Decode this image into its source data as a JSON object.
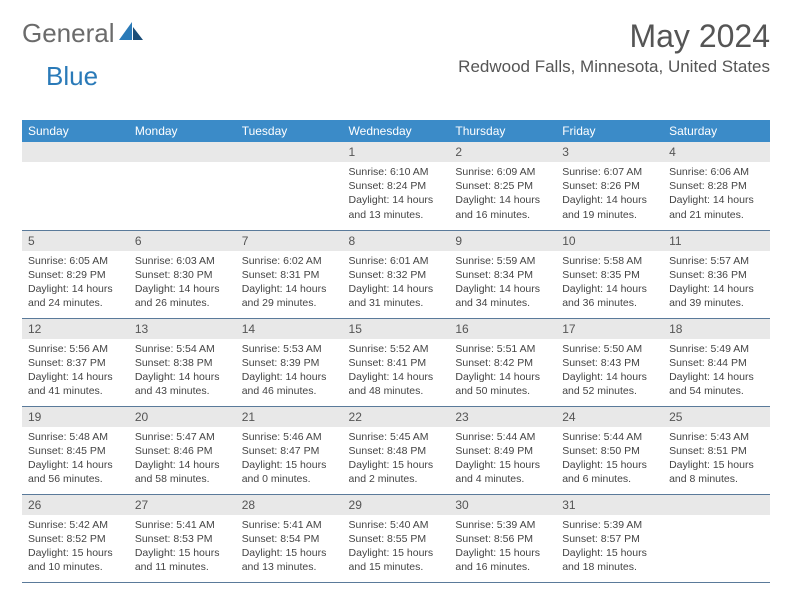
{
  "brand": {
    "general": "General",
    "blue": "Blue"
  },
  "title": "May 2024",
  "location": "Redwood Falls, Minnesota, United States",
  "colors": {
    "header_band": "#3b8bc8",
    "daynum_band": "#e8e8e8",
    "row_border": "#5a7a9a",
    "text": "#444444",
    "logo_gray": "#6b6b6b",
    "logo_blue": "#2a7ab8"
  },
  "day_headers": [
    "Sunday",
    "Monday",
    "Tuesday",
    "Wednesday",
    "Thursday",
    "Friday",
    "Saturday"
  ],
  "weeks": [
    [
      null,
      null,
      null,
      {
        "n": "1",
        "sr": "Sunrise: 6:10 AM",
        "ss": "Sunset: 8:24 PM",
        "d1": "Daylight: 14 hours",
        "d2": "and 13 minutes."
      },
      {
        "n": "2",
        "sr": "Sunrise: 6:09 AM",
        "ss": "Sunset: 8:25 PM",
        "d1": "Daylight: 14 hours",
        "d2": "and 16 minutes."
      },
      {
        "n": "3",
        "sr": "Sunrise: 6:07 AM",
        "ss": "Sunset: 8:26 PM",
        "d1": "Daylight: 14 hours",
        "d2": "and 19 minutes."
      },
      {
        "n": "4",
        "sr": "Sunrise: 6:06 AM",
        "ss": "Sunset: 8:28 PM",
        "d1": "Daylight: 14 hours",
        "d2": "and 21 minutes."
      }
    ],
    [
      {
        "n": "5",
        "sr": "Sunrise: 6:05 AM",
        "ss": "Sunset: 8:29 PM",
        "d1": "Daylight: 14 hours",
        "d2": "and 24 minutes."
      },
      {
        "n": "6",
        "sr": "Sunrise: 6:03 AM",
        "ss": "Sunset: 8:30 PM",
        "d1": "Daylight: 14 hours",
        "d2": "and 26 minutes."
      },
      {
        "n": "7",
        "sr": "Sunrise: 6:02 AM",
        "ss": "Sunset: 8:31 PM",
        "d1": "Daylight: 14 hours",
        "d2": "and 29 minutes."
      },
      {
        "n": "8",
        "sr": "Sunrise: 6:01 AM",
        "ss": "Sunset: 8:32 PM",
        "d1": "Daylight: 14 hours",
        "d2": "and 31 minutes."
      },
      {
        "n": "9",
        "sr": "Sunrise: 5:59 AM",
        "ss": "Sunset: 8:34 PM",
        "d1": "Daylight: 14 hours",
        "d2": "and 34 minutes."
      },
      {
        "n": "10",
        "sr": "Sunrise: 5:58 AM",
        "ss": "Sunset: 8:35 PM",
        "d1": "Daylight: 14 hours",
        "d2": "and 36 minutes."
      },
      {
        "n": "11",
        "sr": "Sunrise: 5:57 AM",
        "ss": "Sunset: 8:36 PM",
        "d1": "Daylight: 14 hours",
        "d2": "and 39 minutes."
      }
    ],
    [
      {
        "n": "12",
        "sr": "Sunrise: 5:56 AM",
        "ss": "Sunset: 8:37 PM",
        "d1": "Daylight: 14 hours",
        "d2": "and 41 minutes."
      },
      {
        "n": "13",
        "sr": "Sunrise: 5:54 AM",
        "ss": "Sunset: 8:38 PM",
        "d1": "Daylight: 14 hours",
        "d2": "and 43 minutes."
      },
      {
        "n": "14",
        "sr": "Sunrise: 5:53 AM",
        "ss": "Sunset: 8:39 PM",
        "d1": "Daylight: 14 hours",
        "d2": "and 46 minutes."
      },
      {
        "n": "15",
        "sr": "Sunrise: 5:52 AM",
        "ss": "Sunset: 8:41 PM",
        "d1": "Daylight: 14 hours",
        "d2": "and 48 minutes."
      },
      {
        "n": "16",
        "sr": "Sunrise: 5:51 AM",
        "ss": "Sunset: 8:42 PM",
        "d1": "Daylight: 14 hours",
        "d2": "and 50 minutes."
      },
      {
        "n": "17",
        "sr": "Sunrise: 5:50 AM",
        "ss": "Sunset: 8:43 PM",
        "d1": "Daylight: 14 hours",
        "d2": "and 52 minutes."
      },
      {
        "n": "18",
        "sr": "Sunrise: 5:49 AM",
        "ss": "Sunset: 8:44 PM",
        "d1": "Daylight: 14 hours",
        "d2": "and 54 minutes."
      }
    ],
    [
      {
        "n": "19",
        "sr": "Sunrise: 5:48 AM",
        "ss": "Sunset: 8:45 PM",
        "d1": "Daylight: 14 hours",
        "d2": "and 56 minutes."
      },
      {
        "n": "20",
        "sr": "Sunrise: 5:47 AM",
        "ss": "Sunset: 8:46 PM",
        "d1": "Daylight: 14 hours",
        "d2": "and 58 minutes."
      },
      {
        "n": "21",
        "sr": "Sunrise: 5:46 AM",
        "ss": "Sunset: 8:47 PM",
        "d1": "Daylight: 15 hours",
        "d2": "and 0 minutes."
      },
      {
        "n": "22",
        "sr": "Sunrise: 5:45 AM",
        "ss": "Sunset: 8:48 PM",
        "d1": "Daylight: 15 hours",
        "d2": "and 2 minutes."
      },
      {
        "n": "23",
        "sr": "Sunrise: 5:44 AM",
        "ss": "Sunset: 8:49 PM",
        "d1": "Daylight: 15 hours",
        "d2": "and 4 minutes."
      },
      {
        "n": "24",
        "sr": "Sunrise: 5:44 AM",
        "ss": "Sunset: 8:50 PM",
        "d1": "Daylight: 15 hours",
        "d2": "and 6 minutes."
      },
      {
        "n": "25",
        "sr": "Sunrise: 5:43 AM",
        "ss": "Sunset: 8:51 PM",
        "d1": "Daylight: 15 hours",
        "d2": "and 8 minutes."
      }
    ],
    [
      {
        "n": "26",
        "sr": "Sunrise: 5:42 AM",
        "ss": "Sunset: 8:52 PM",
        "d1": "Daylight: 15 hours",
        "d2": "and 10 minutes."
      },
      {
        "n": "27",
        "sr": "Sunrise: 5:41 AM",
        "ss": "Sunset: 8:53 PM",
        "d1": "Daylight: 15 hours",
        "d2": "and 11 minutes."
      },
      {
        "n": "28",
        "sr": "Sunrise: 5:41 AM",
        "ss": "Sunset: 8:54 PM",
        "d1": "Daylight: 15 hours",
        "d2": "and 13 minutes."
      },
      {
        "n": "29",
        "sr": "Sunrise: 5:40 AM",
        "ss": "Sunset: 8:55 PM",
        "d1": "Daylight: 15 hours",
        "d2": "and 15 minutes."
      },
      {
        "n": "30",
        "sr": "Sunrise: 5:39 AM",
        "ss": "Sunset: 8:56 PM",
        "d1": "Daylight: 15 hours",
        "d2": "and 16 minutes."
      },
      {
        "n": "31",
        "sr": "Sunrise: 5:39 AM",
        "ss": "Sunset: 8:57 PM",
        "d1": "Daylight: 15 hours",
        "d2": "and 18 minutes."
      },
      null
    ]
  ]
}
